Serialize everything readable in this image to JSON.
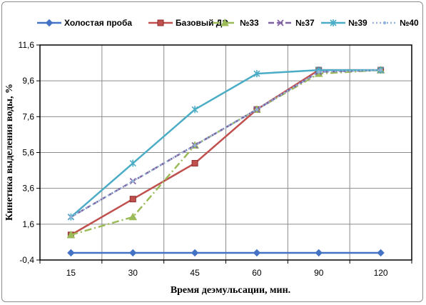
{
  "chart_data": {
    "type": "line",
    "categories": [
      "15",
      "30",
      "45",
      "60",
      "90",
      "120"
    ],
    "xlabel": "Время деэмульсации,  мин.",
    "ylabel": "Кинетика выделения воды, %",
    "ylim": [
      -0.4,
      11.6
    ],
    "yticks": [
      "-0,4",
      "1,6",
      "3,6",
      "5,6",
      "7,6",
      "9,6",
      "11,6"
    ],
    "grid": true,
    "legend_position": "top",
    "series": [
      {
        "name": "Холостая проба",
        "values": [
          0,
          0,
          0,
          0,
          0,
          0
        ],
        "color": "#4472C4",
        "marker": "diamond",
        "dash": "solid"
      },
      {
        "name": "Базовый ДЭ",
        "values": [
          1,
          3,
          5,
          8,
          10.2,
          10.2
        ],
        "color": "#C0504D",
        "marker": "square",
        "dash": "solid"
      },
      {
        "name": "№33",
        "values": [
          1,
          2,
          6,
          8,
          10,
          10.2
        ],
        "color": "#9BBB59",
        "marker": "triangle",
        "dash": "dashdot"
      },
      {
        "name": "№37",
        "values": [
          2,
          4,
          6,
          8,
          10.1,
          10.2
        ],
        "color": "#8064A2",
        "marker": "x",
        "dash": "dash"
      },
      {
        "name": "№39",
        "values": [
          2,
          5,
          8,
          10,
          10.2,
          10.2
        ],
        "color": "#4BACC6",
        "marker": "star",
        "dash": "solid"
      },
      {
        "name": "№40",
        "values": [
          2,
          4,
          6,
          8,
          10.1,
          10.2
        ],
        "color": "#95B3D7",
        "marker": "dot",
        "dash": "dot"
      }
    ]
  }
}
